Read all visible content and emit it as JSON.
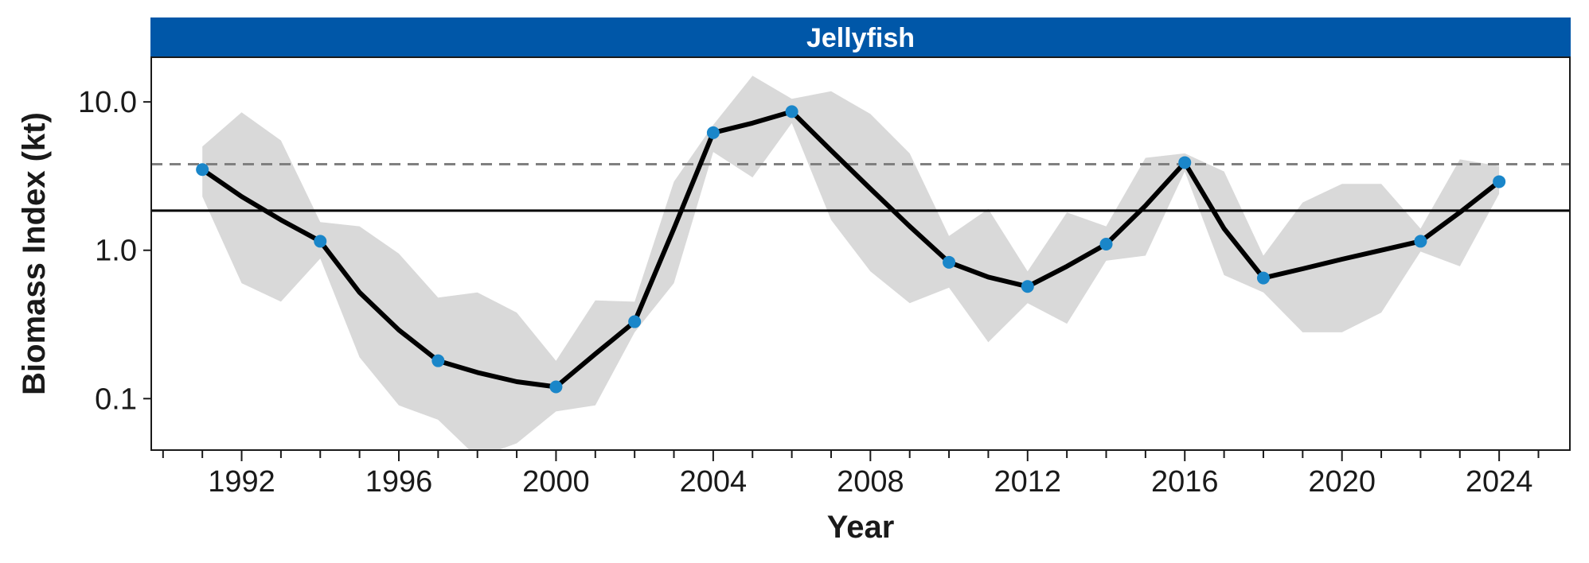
{
  "chart_data": {
    "type": "line",
    "title": "Jellyfish",
    "xlabel": "Year",
    "ylabel": "Biomass Index (kt)",
    "xlim": [
      1989.7,
      2025.8
    ],
    "ylim": [
      0.045,
      20
    ],
    "y_scale": "log",
    "x_ticks_major": [
      1992,
      1996,
      2000,
      2004,
      2008,
      2012,
      2016,
      2020,
      2024
    ],
    "x_tick_labels": [
      "1992",
      "1996",
      "2000",
      "2004",
      "2008",
      "2012",
      "2016",
      "2020",
      "2024"
    ],
    "y_ticks": [
      0.1,
      1,
      10
    ],
    "y_tick_labels": [
      "0.1",
      "1.0",
      "10.0"
    ],
    "grid": false,
    "legend": "none",
    "colors": {
      "strip": "#0057a8",
      "line": "#000000",
      "points": "#1a86c9",
      "ribbon": "#d9d9d9",
      "dashed_line": "#808080",
      "solid_line": "#000000"
    },
    "reference_lines": [
      {
        "style": "dashed",
        "y": 3.8
      },
      {
        "style": "solid",
        "y": 1.85
      }
    ],
    "series": [
      {
        "x": [
          1991,
          1992,
          1993,
          1994,
          1995,
          1996,
          1997,
          1998,
          1999,
          2000,
          2001,
          2002,
          2003,
          2004,
          2005,
          2006,
          2007,
          2008,
          2009,
          2010,
          2011,
          2012,
          2013,
          2014,
          2015,
          2016,
          2017,
          2018,
          2019,
          2020,
          2021,
          2022,
          2023,
          2024
        ],
        "y": [
          3.5,
          2.3,
          1.6,
          1.15,
          0.52,
          0.29,
          0.18,
          0.15,
          0.13,
          0.12,
          0.2,
          0.33,
          1.4,
          6.2,
          7.2,
          8.6,
          4.7,
          2.6,
          1.45,
          0.83,
          0.66,
          0.57,
          0.78,
          1.1,
          2.0,
          3.9,
          1.4,
          0.65,
          0.75,
          0.87,
          1.0,
          1.15,
          1.8,
          2.9
        ],
        "points_x": [
          1991,
          1994,
          1997,
          2000,
          2002,
          2004,
          2006,
          2010,
          2012,
          2014,
          2016,
          2018,
          2022,
          2024
        ],
        "points_y": [
          3.5,
          1.15,
          0.18,
          0.12,
          0.33,
          6.2,
          8.6,
          0.83,
          0.57,
          1.1,
          3.9,
          0.65,
          1.15,
          2.9
        ],
        "ribbon_upper": [
          5.0,
          8.5,
          5.5,
          1.55,
          1.45,
          0.95,
          0.48,
          0.52,
          0.38,
          0.18,
          0.46,
          0.45,
          2.9,
          7.0,
          15.0,
          10.5,
          11.8,
          8.3,
          4.5,
          1.25,
          1.9,
          0.72,
          1.8,
          1.45,
          4.2,
          4.5,
          3.4,
          0.92,
          2.1,
          2.8,
          2.8,
          1.4,
          4.1,
          3.7
        ],
        "ribbon_lower": [
          2.3,
          0.6,
          0.45,
          0.88,
          0.19,
          0.09,
          0.072,
          0.04,
          0.05,
          0.082,
          0.09,
          0.28,
          0.6,
          4.6,
          3.1,
          7.2,
          1.6,
          0.72,
          0.44,
          0.56,
          0.24,
          0.44,
          0.32,
          0.85,
          0.92,
          3.4,
          0.68,
          0.52,
          0.28,
          0.28,
          0.38,
          0.98,
          0.78,
          2.4
        ]
      }
    ]
  }
}
